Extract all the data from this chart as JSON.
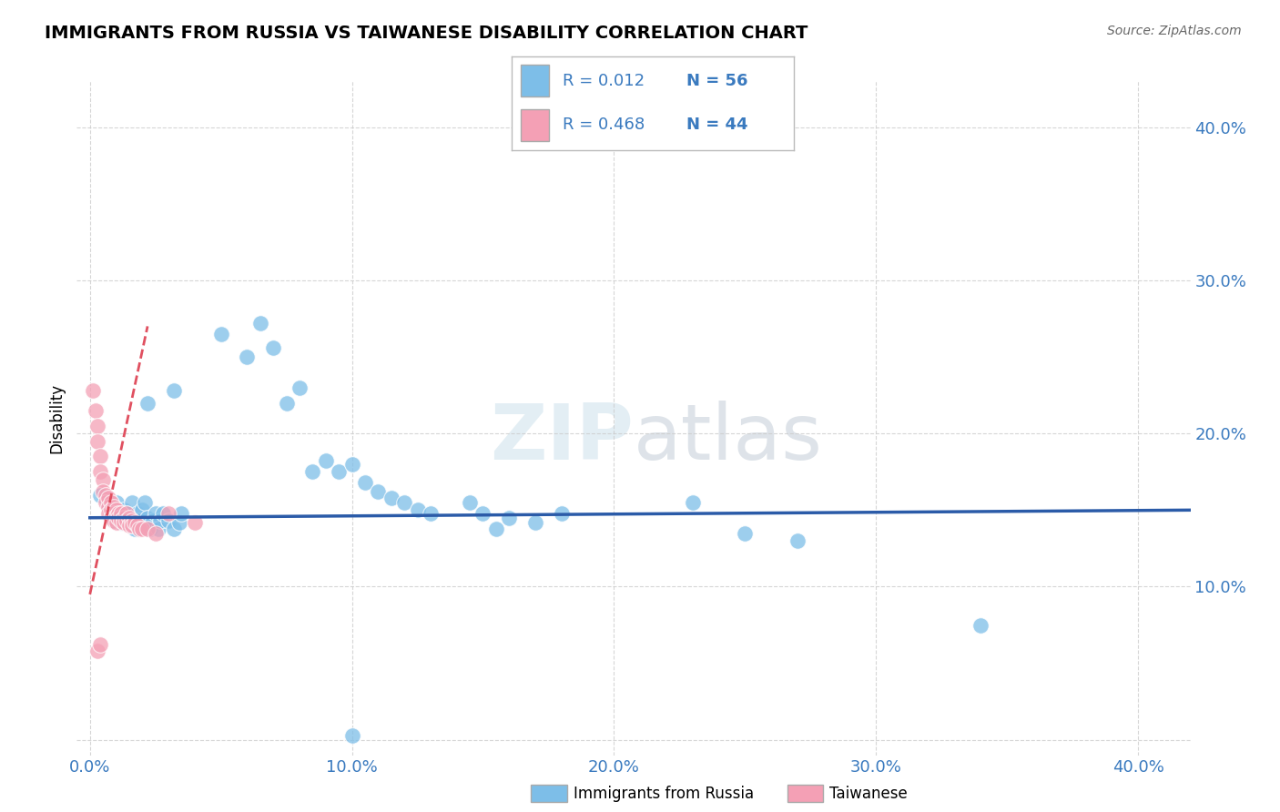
{
  "title": "IMMIGRANTS FROM RUSSIA VS TAIWANESE DISABILITY CORRELATION CHART",
  "source": "Source: ZipAtlas.com",
  "ylabel": "Disability",
  "yticks": [
    0.0,
    0.1,
    0.2,
    0.3,
    0.4
  ],
  "ytick_labels": [
    "",
    "10.0%",
    "20.0%",
    "30.0%",
    "40.0%"
  ],
  "xticks": [
    0.0,
    0.1,
    0.2,
    0.3,
    0.4
  ],
  "xlim": [
    -0.005,
    0.42
  ],
  "ylim": [
    -0.01,
    0.43
  ],
  "legend_label1": "Immigrants from Russia",
  "legend_label2": "Taiwanese",
  "watermark": "ZIPatlas",
  "blue_color": "#7dbee8",
  "pink_color": "#f4a0b5",
  "trendline_blue_color": "#2b5ba8",
  "trendline_pink_color": "#e05060",
  "blue_scatter": [
    [
      0.004,
      0.16
    ],
    [
      0.007,
      0.152
    ],
    [
      0.008,
      0.148
    ],
    [
      0.009,
      0.143
    ],
    [
      0.01,
      0.155
    ],
    [
      0.011,
      0.148
    ],
    [
      0.012,
      0.142
    ],
    [
      0.013,
      0.15
    ],
    [
      0.014,
      0.148
    ],
    [
      0.015,
      0.143
    ],
    [
      0.016,
      0.155
    ],
    [
      0.017,
      0.138
    ],
    [
      0.018,
      0.148
    ],
    [
      0.019,
      0.143
    ],
    [
      0.02,
      0.15
    ],
    [
      0.021,
      0.155
    ],
    [
      0.022,
      0.145
    ],
    [
      0.023,
      0.138
    ],
    [
      0.024,
      0.143
    ],
    [
      0.025,
      0.148
    ],
    [
      0.026,
      0.138
    ],
    [
      0.027,
      0.143
    ],
    [
      0.028,
      0.148
    ],
    [
      0.03,
      0.143
    ],
    [
      0.032,
      0.138
    ],
    [
      0.034,
      0.142
    ],
    [
      0.035,
      0.148
    ],
    [
      0.022,
      0.22
    ],
    [
      0.032,
      0.228
    ],
    [
      0.05,
      0.265
    ],
    [
      0.065,
      0.272
    ],
    [
      0.06,
      0.25
    ],
    [
      0.07,
      0.256
    ],
    [
      0.075,
      0.22
    ],
    [
      0.08,
      0.23
    ],
    [
      0.085,
      0.175
    ],
    [
      0.09,
      0.182
    ],
    [
      0.095,
      0.175
    ],
    [
      0.1,
      0.18
    ],
    [
      0.105,
      0.168
    ],
    [
      0.11,
      0.162
    ],
    [
      0.115,
      0.158
    ],
    [
      0.12,
      0.155
    ],
    [
      0.125,
      0.15
    ],
    [
      0.13,
      0.148
    ],
    [
      0.145,
      0.155
    ],
    [
      0.15,
      0.148
    ],
    [
      0.16,
      0.145
    ],
    [
      0.17,
      0.142
    ],
    [
      0.18,
      0.148
    ],
    [
      0.155,
      0.138
    ],
    [
      0.23,
      0.155
    ],
    [
      0.25,
      0.135
    ],
    [
      0.27,
      0.13
    ],
    [
      0.34,
      0.075
    ],
    [
      0.1,
      0.003
    ]
  ],
  "pink_scatter": [
    [
      0.001,
      0.228
    ],
    [
      0.002,
      0.215
    ],
    [
      0.003,
      0.205
    ],
    [
      0.003,
      0.195
    ],
    [
      0.004,
      0.185
    ],
    [
      0.004,
      0.175
    ],
    [
      0.005,
      0.17
    ],
    [
      0.005,
      0.162
    ],
    [
      0.006,
      0.16
    ],
    [
      0.006,
      0.155
    ],
    [
      0.007,
      0.158
    ],
    [
      0.007,
      0.152
    ],
    [
      0.007,
      0.148
    ],
    [
      0.008,
      0.155
    ],
    [
      0.008,
      0.15
    ],
    [
      0.008,
      0.145
    ],
    [
      0.009,
      0.152
    ],
    [
      0.009,
      0.148
    ],
    [
      0.009,
      0.143
    ],
    [
      0.01,
      0.15
    ],
    [
      0.01,
      0.146
    ],
    [
      0.01,
      0.142
    ],
    [
      0.011,
      0.148
    ],
    [
      0.011,
      0.145
    ],
    [
      0.012,
      0.148
    ],
    [
      0.012,
      0.143
    ],
    [
      0.013,
      0.145
    ],
    [
      0.013,
      0.142
    ],
    [
      0.014,
      0.148
    ],
    [
      0.014,
      0.143
    ],
    [
      0.015,
      0.145
    ],
    [
      0.015,
      0.14
    ],
    [
      0.016,
      0.143
    ],
    [
      0.016,
      0.14
    ],
    [
      0.017,
      0.142
    ],
    [
      0.018,
      0.14
    ],
    [
      0.019,
      0.138
    ],
    [
      0.02,
      0.138
    ],
    [
      0.022,
      0.138
    ],
    [
      0.025,
      0.135
    ],
    [
      0.003,
      0.058
    ],
    [
      0.004,
      0.062
    ],
    [
      0.03,
      0.148
    ],
    [
      0.04,
      0.142
    ]
  ],
  "blue_trendline_x": [
    0.0,
    0.42
  ],
  "blue_trendline_y": [
    0.145,
    0.15
  ],
  "pink_trendline_x": [
    0.0,
    0.022
  ],
  "pink_trendline_y": [
    0.095,
    0.27
  ]
}
